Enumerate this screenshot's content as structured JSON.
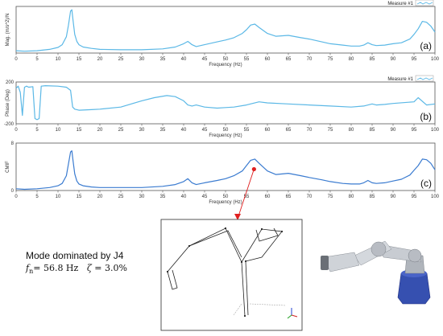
{
  "chart_data": [
    {
      "type": "line",
      "panel_label": "(a)",
      "ylabel": "Mag. (m/s^2)/N",
      "xlabel": "Frequency (Hz)",
      "legend": "Measure #1",
      "xlim": [
        0,
        100
      ],
      "ylim": [
        0,
        1
      ],
      "yticks": [],
      "xticks": [
        0,
        5,
        10,
        15,
        20,
        25,
        30,
        35,
        40,
        45,
        50,
        55,
        60,
        65,
        70,
        75,
        80,
        85,
        90,
        95,
        100
      ],
      "color": "#5bb8e6",
      "series": [
        {
          "x": [
            0,
            2,
            5,
            8,
            10,
            11,
            12,
            12.5,
            13,
            13.3,
            13.6,
            14,
            14.5,
            15,
            16,
            18,
            20,
            25,
            30,
            35,
            38,
            40,
            41,
            42,
            43,
            45,
            48,
            50,
            52,
            54,
            55,
            56,
            57,
            58,
            60,
            62,
            65,
            68,
            70,
            73,
            75,
            78,
            80,
            82,
            83,
            84,
            85,
            86,
            88,
            90,
            92,
            94,
            95,
            96,
            97,
            98,
            99,
            100
          ],
          "y": [
            0.05,
            0.04,
            0.05,
            0.08,
            0.12,
            0.18,
            0.35,
            0.6,
            0.9,
            0.93,
            0.7,
            0.4,
            0.25,
            0.18,
            0.13,
            0.1,
            0.08,
            0.07,
            0.07,
            0.09,
            0.13,
            0.2,
            0.25,
            0.18,
            0.14,
            0.18,
            0.24,
            0.28,
            0.33,
            0.42,
            0.5,
            0.6,
            0.62,
            0.55,
            0.42,
            0.36,
            0.38,
            0.33,
            0.3,
            0.24,
            0.2,
            0.17,
            0.15,
            0.15,
            0.17,
            0.22,
            0.18,
            0.16,
            0.17,
            0.2,
            0.22,
            0.3,
            0.4,
            0.52,
            0.68,
            0.66,
            0.58,
            0.45
          ]
        }
      ]
    },
    {
      "type": "line",
      "panel_label": "(b)",
      "ylabel": "Phase (Deg)",
      "xlabel": "Frequency (Hz)",
      "legend": "Measure #1",
      "xlim": [
        0,
        100
      ],
      "ylim": [
        -200,
        200
      ],
      "yticks": [
        200,
        -200
      ],
      "xticks": [
        0,
        5,
        10,
        15,
        20,
        25,
        30,
        35,
        40,
        45,
        50,
        55,
        60,
        65,
        70,
        75,
        80,
        85,
        90,
        95,
        100
      ],
      "color": "#5bb8e6",
      "series": [
        {
          "x": [
            0,
            0.5,
            1,
            1.5,
            2,
            2.5,
            3,
            4,
            4.5,
            5,
            5.5,
            6,
            7,
            10,
            12,
            13,
            13.5,
            14,
            15,
            18,
            20,
            25,
            30,
            33,
            36,
            38,
            40,
            41,
            42,
            43,
            45,
            48,
            50,
            52,
            55,
            58,
            60,
            65,
            70,
            75,
            80,
            83,
            85,
            86,
            88,
            90,
            95,
            96,
            98,
            100
          ],
          "y": [
            140,
            160,
            100,
            -120,
            150,
            160,
            150,
            155,
            -150,
            -160,
            -150,
            160,
            165,
            160,
            150,
            120,
            -40,
            -60,
            -70,
            -65,
            -60,
            -40,
            20,
            50,
            70,
            60,
            20,
            -20,
            -30,
            -20,
            -40,
            -50,
            -45,
            -40,
            -20,
            10,
            0,
            -10,
            -20,
            -30,
            -40,
            -30,
            -10,
            -20,
            -15,
            -5,
            10,
            50,
            -20,
            -10
          ]
        }
      ]
    },
    {
      "type": "line",
      "panel_label": "(c)",
      "ylabel": "CMIF",
      "xlabel": "Frequency (Hz)",
      "legend": "",
      "xlim": [
        0,
        100
      ],
      "ylim": [
        0,
        8
      ],
      "yticks": [
        8,
        0
      ],
      "xticks": [
        0,
        5,
        10,
        15,
        20,
        25,
        30,
        35,
        40,
        45,
        50,
        55,
        60,
        65,
        70,
        75,
        80,
        85,
        90,
        95,
        100
      ],
      "color": "#3a7bd0",
      "annotation": {
        "x": 56.8,
        "y": 3.6
      },
      "series": [
        {
          "x": [
            0,
            2,
            5,
            8,
            10,
            11,
            12,
            12.5,
            13,
            13.3,
            13.6,
            14,
            14.5,
            15,
            16,
            18,
            20,
            25,
            30,
            35,
            38,
            40,
            41,
            42,
            43,
            45,
            48,
            50,
            52,
            54,
            55,
            56,
            57,
            58,
            60,
            62,
            65,
            68,
            70,
            73,
            75,
            78,
            80,
            82,
            83,
            84,
            85,
            86,
            88,
            90,
            92,
            94,
            95,
            96,
            97,
            98,
            99,
            100
          ],
          "y": [
            0.3,
            0.2,
            0.3,
            0.5,
            0.8,
            1.2,
            2.5,
            4.5,
            6.5,
            6.7,
            5.0,
            2.8,
            1.6,
            1.1,
            0.8,
            0.6,
            0.5,
            0.5,
            0.5,
            0.7,
            1.0,
            1.5,
            2.0,
            1.3,
            1.0,
            1.3,
            1.7,
            2.0,
            2.5,
            3.3,
            4.2,
            5.1,
            5.3,
            4.6,
            3.3,
            2.7,
            2.9,
            2.5,
            2.2,
            1.8,
            1.5,
            1.2,
            1.1,
            1.1,
            1.3,
            1.7,
            1.3,
            1.2,
            1.3,
            1.6,
            1.9,
            2.6,
            3.4,
            4.2,
            5.3,
            5.2,
            4.6,
            3.5
          ]
        }
      ]
    }
  ],
  "mode_info": {
    "title": "Mode dominated  by J4",
    "fn_label": "f",
    "fn_sub": "n",
    "fn_value": "= 56.8 Hz",
    "zeta_label": "ζ",
    "zeta_value": "= 3.0%"
  },
  "colors": {
    "curve_light": "#5bb8e6",
    "curve_dark": "#3a7bd0",
    "annotation": "#e02020",
    "robot_body": "#c8ccd2",
    "robot_base": "#3650b0"
  }
}
